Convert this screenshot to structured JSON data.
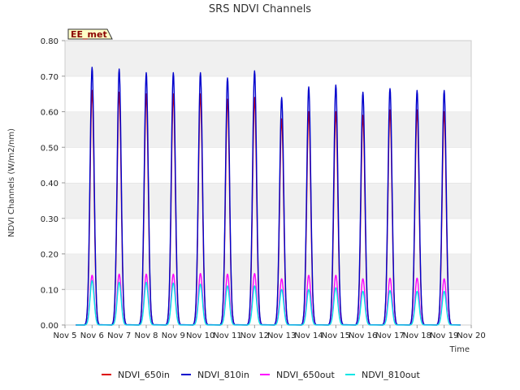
{
  "chart_data": {
    "type": "line",
    "title": "SRS NDVI Channels",
    "xlabel": "Time",
    "ylabel": "NDVI Channels (W/m2/nm)",
    "ylim": [
      0.0,
      0.8
    ],
    "yticks": [
      "0.00",
      "0.10",
      "0.20",
      "0.30",
      "0.40",
      "0.50",
      "0.60",
      "0.70",
      "0.80"
    ],
    "xlim": [
      5,
      20
    ],
    "xticks": [
      "Nov 5",
      "Nov 6",
      "Nov 7",
      "Nov 8",
      "Nov 9",
      "Nov 10",
      "Nov 11",
      "Nov 12",
      "Nov 13",
      "Nov 14",
      "Nov 15",
      "Nov 16",
      "Nov 17",
      "Nov 18",
      "Nov 19",
      "Nov 20"
    ],
    "annotation": "EE_met",
    "grid": "horizontal bands",
    "legend_position": "bottom",
    "x": [
      "Nov 6",
      "Nov 7",
      "Nov 8",
      "Nov 9",
      "Nov 10",
      "Nov 11",
      "Nov 12",
      "Nov 13",
      "Nov 14",
      "Nov 15",
      "Nov 16",
      "Nov 17",
      "Nov 18",
      "Nov 19"
    ],
    "series": [
      {
        "name": "NDVI_650in",
        "color": "#dd0000",
        "values": [
          0.66,
          0.655,
          0.65,
          0.65,
          0.65,
          0.635,
          0.64,
          0.58,
          0.6,
          0.6,
          0.59,
          0.605,
          0.605,
          0.6
        ]
      },
      {
        "name": "NDVI_810in",
        "color": "#0000cc",
        "values": [
          0.725,
          0.72,
          0.71,
          0.71,
          0.71,
          0.695,
          0.715,
          0.64,
          0.67,
          0.675,
          0.655,
          0.665,
          0.66,
          0.66
        ]
      },
      {
        "name": "NDVI_650out",
        "color": "#ff00ff",
        "values": [
          0.14,
          0.143,
          0.143,
          0.143,
          0.145,
          0.143,
          0.145,
          0.13,
          0.14,
          0.14,
          0.13,
          0.132,
          0.132,
          0.13
        ]
      },
      {
        "name": "NDVI_810out",
        "color": "#00e5e5",
        "values": [
          0.125,
          0.12,
          0.12,
          0.118,
          0.115,
          0.11,
          0.11,
          0.1,
          0.1,
          0.105,
          0.095,
          0.097,
          0.095,
          0.095
        ]
      }
    ]
  }
}
